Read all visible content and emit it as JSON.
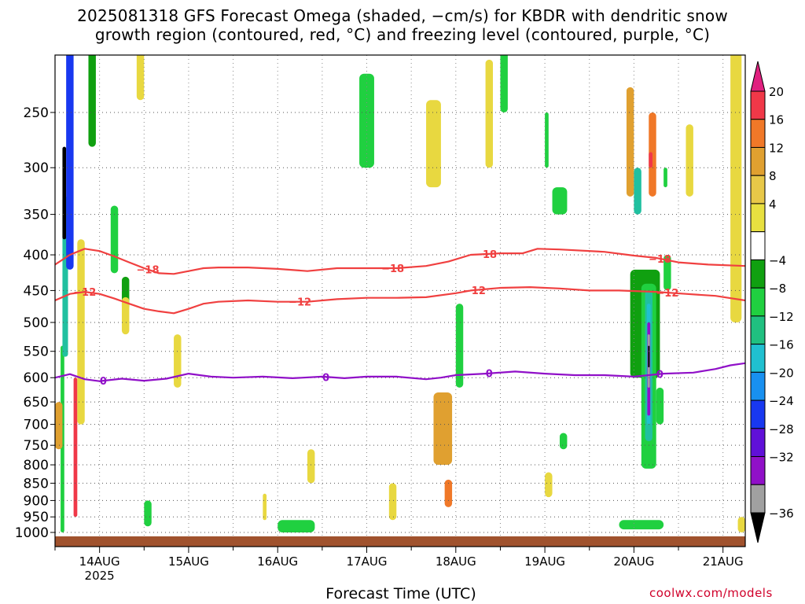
{
  "title": {
    "line1": "2025081318 GFS Forecast Omega (shaded, −cm/s) for KBDR with dendritic snow",
    "line2": "growth region (contoured, red, °C) and freezing level (contoured, purple, °C)"
  },
  "footer": {
    "xlabel": "Forecast Time (UTC)",
    "credit": "coolwx.com/models"
  },
  "chart_data": {
    "type": "heatmap",
    "title": "2025081318 GFS Forecast Omega (shaded, −cm/s) for KBDR with dendritic snow growth region (contoured, red, °C) and freezing level (contoured, purple, °C)",
    "xlabel": "Forecast Time (UTC)",
    "ylabel": "",
    "x_range_hours_from_14AUG00Z": [
      -12,
      174
    ],
    "x_ticks": [
      {
        "hour": 0,
        "label": "14AUG",
        "sub": "2025"
      },
      {
        "hour": 24,
        "label": "15AUG"
      },
      {
        "hour": 48,
        "label": "16AUG"
      },
      {
        "hour": 72,
        "label": "17AUG"
      },
      {
        "hour": 96,
        "label": "18AUG"
      },
      {
        "hour": 120,
        "label": "19AUG"
      },
      {
        "hour": 144,
        "label": "20AUG"
      },
      {
        "hour": 168,
        "label": "21AUG"
      }
    ],
    "y_axis": "pressure (hPa), log scale, inverted",
    "y_range": [
      1025,
      200
    ],
    "y_ticks": [
      250,
      300,
      350,
      400,
      450,
      500,
      550,
      600,
      650,
      700,
      750,
      800,
      850,
      900,
      950,
      1000
    ],
    "grid": true,
    "colorbar": {
      "labels": [
        "20",
        "16",
        "12",
        "8",
        "4",
        "−4",
        "−8",
        "−12",
        "−16",
        "−20",
        "−24",
        "−28",
        "−32",
        "−36"
      ],
      "colors_top_to_bottom": [
        "#e0207f",
        "#f03848",
        "#f07828",
        "#e0a030",
        "#e8c848",
        "#e8e040",
        "#ffffff",
        "#10a010",
        "#20d040",
        "#20c080",
        "#20c0d0",
        "#1890f0",
        "#1838f0",
        "#6010d8",
        "#9010c8",
        "#a0a0a0",
        "#000000"
      ]
    },
    "contours": [
      {
        "name": "-18",
        "color": "#f04040",
        "label_hours": [
          13,
          79,
          104,
          151
        ],
        "points": [
          [
            -12,
            413
          ],
          [
            -8,
            400
          ],
          [
            -4,
            392
          ],
          [
            0,
            395
          ],
          [
            4,
            402
          ],
          [
            8,
            410
          ],
          [
            12,
            418
          ],
          [
            16,
            425
          ],
          [
            20,
            426
          ],
          [
            24,
            422
          ],
          [
            28,
            418
          ],
          [
            32,
            417
          ],
          [
            40,
            417
          ],
          [
            48,
            419
          ],
          [
            56,
            422
          ],
          [
            64,
            418
          ],
          [
            72,
            418
          ],
          [
            80,
            418
          ],
          [
            88,
            415
          ],
          [
            94,
            409
          ],
          [
            100,
            400
          ],
          [
            108,
            398
          ],
          [
            114,
            398
          ],
          [
            118,
            392
          ],
          [
            124,
            393
          ],
          [
            136,
            396
          ],
          [
            144,
            401
          ],
          [
            150,
            404
          ],
          [
            156,
            410
          ],
          [
            164,
            413
          ],
          [
            174,
            415
          ]
        ]
      },
      {
        "name": "-12",
        "color": "#f04040",
        "label_hours": [
          -4,
          54,
          101,
          153
        ],
        "points": [
          [
            -12,
            465
          ],
          [
            -8,
            455
          ],
          [
            -4,
            452
          ],
          [
            0,
            455
          ],
          [
            4,
            462
          ],
          [
            8,
            470
          ],
          [
            12,
            478
          ],
          [
            16,
            482
          ],
          [
            20,
            485
          ],
          [
            24,
            478
          ],
          [
            28,
            470
          ],
          [
            32,
            467
          ],
          [
            40,
            465
          ],
          [
            48,
            467
          ],
          [
            56,
            467
          ],
          [
            64,
            463
          ],
          [
            72,
            461
          ],
          [
            80,
            461
          ],
          [
            88,
            460
          ],
          [
            96,
            454
          ],
          [
            100,
            450
          ],
          [
            108,
            446
          ],
          [
            116,
            445
          ],
          [
            124,
            447
          ],
          [
            132,
            450
          ],
          [
            140,
            450
          ],
          [
            150,
            452
          ],
          [
            158,
            455
          ],
          [
            166,
            458
          ],
          [
            174,
            465
          ]
        ]
      },
      {
        "name": "0",
        "color": "#9010c8",
        "label_hours": [
          1,
          61,
          105,
          151
        ],
        "points": [
          [
            -12,
            600
          ],
          [
            -8,
            593
          ],
          [
            -4,
            603
          ],
          [
            0,
            607
          ],
          [
            6,
            602
          ],
          [
            12,
            606
          ],
          [
            18,
            602
          ],
          [
            24,
            592
          ],
          [
            30,
            598
          ],
          [
            36,
            600
          ],
          [
            44,
            598
          ],
          [
            52,
            601
          ],
          [
            60,
            598
          ],
          [
            66,
            601
          ],
          [
            72,
            598
          ],
          [
            80,
            598
          ],
          [
            88,
            603
          ],
          [
            92,
            600
          ],
          [
            96,
            595
          ],
          [
            104,
            592
          ],
          [
            112,
            588
          ],
          [
            120,
            592
          ],
          [
            128,
            595
          ],
          [
            136,
            595
          ],
          [
            144,
            598
          ],
          [
            152,
            592
          ],
          [
            160,
            590
          ],
          [
            166,
            583
          ],
          [
            170,
            576
          ],
          [
            174,
            572
          ]
        ]
      }
    ],
    "omega_regions": [
      {
        "value": -8,
        "hours": [
          -10.5,
          -9.5
        ],
        "p": [
          540,
          1000
        ]
      },
      {
        "value": -12,
        "hours": [
          -10,
          -8.5
        ],
        "p": [
          330,
          560
        ]
      },
      {
        "value": -36,
        "hours": [
          -10,
          -9
        ],
        "p": [
          280,
          380
        ]
      },
      {
        "value": -24,
        "hours": [
          -9,
          -7
        ],
        "p": [
          200,
          420
        ]
      },
      {
        "value": 16,
        "hours": [
          -7,
          -6
        ],
        "p": [
          600,
          950
        ]
      },
      {
        "value": 8,
        "hours": [
          -12,
          -10
        ],
        "p": [
          650,
          760
        ]
      },
      {
        "value": 4,
        "hours": [
          -6,
          -4
        ],
        "p": [
          380,
          700
        ]
      },
      {
        "value": -8,
        "hours": [
          3,
          5
        ],
        "p": [
          340,
          425
        ]
      },
      {
        "value": -4,
        "hours": [
          6,
          8
        ],
        "p": [
          430,
          480
        ]
      },
      {
        "value": 4,
        "hours": [
          6,
          8
        ],
        "p": [
          460,
          520
        ]
      },
      {
        "value": 4,
        "hours": [
          20,
          22
        ],
        "p": [
          520,
          620
        ]
      },
      {
        "value": -4,
        "hours": [
          -3,
          -1
        ],
        "p": [
          200,
          280
        ]
      },
      {
        "value": 4,
        "hours": [
          10,
          12
        ],
        "p": [
          200,
          240
        ]
      },
      {
        "value": 4,
        "hours": [
          44,
          45
        ],
        "p": [
          880,
          960
        ]
      },
      {
        "value": -8,
        "hours": [
          12,
          14
        ],
        "p": [
          900,
          980
        ]
      },
      {
        "value": -8,
        "hours": [
          48,
          58
        ],
        "p": [
          960,
          1000
        ]
      },
      {
        "value": 4,
        "hours": [
          56,
          58
        ],
        "p": [
          760,
          850
        ]
      },
      {
        "value": 4,
        "hours": [
          78,
          80
        ],
        "p": [
          850,
          960
        ]
      },
      {
        "value": -8,
        "hours": [
          70,
          74
        ],
        "p": [
          220,
          300
        ]
      },
      {
        "value": 4,
        "hours": [
          88,
          92
        ],
        "p": [
          240,
          320
        ]
      },
      {
        "value": 8,
        "hours": [
          90,
          95
        ],
        "p": [
          630,
          800
        ]
      },
      {
        "value": 12,
        "hours": [
          93,
          95
        ],
        "p": [
          840,
          920
        ]
      },
      {
        "value": -8,
        "hours": [
          96,
          98
        ],
        "p": [
          470,
          620
        ]
      },
      {
        "value": 4,
        "hours": [
          104,
          106
        ],
        "p": [
          210,
          300
        ]
      },
      {
        "value": -8,
        "hours": [
          108,
          110
        ],
        "p": [
          200,
          250
        ]
      },
      {
        "value": -8,
        "hours": [
          120,
          121
        ],
        "p": [
          250,
          300
        ]
      },
      {
        "value": 4,
        "hours": [
          120,
          122
        ],
        "p": [
          820,
          890
        ]
      },
      {
        "value": -8,
        "hours": [
          122,
          126
        ],
        "p": [
          320,
          350
        ]
      },
      {
        "value": -8,
        "hours": [
          124,
          126
        ],
        "p": [
          720,
          760
        ]
      },
      {
        "value": 8,
        "hours": [
          142,
          144
        ],
        "p": [
          230,
          330
        ]
      },
      {
        "value": 12,
        "hours": [
          148,
          150
        ],
        "p": [
          250,
          330
        ]
      },
      {
        "value": 16,
        "hours": [
          148,
          149
        ],
        "p": [
          285,
          300
        ]
      },
      {
        "value": -12,
        "hours": [
          144,
          146
        ],
        "p": [
          300,
          350
        ]
      },
      {
        "value": -4,
        "hours": [
          143,
          151
        ],
        "p": [
          420,
          600
        ]
      },
      {
        "value": -8,
        "hours": [
          146,
          150
        ],
        "p": [
          440,
          810
        ]
      },
      {
        "value": -12,
        "hours": [
          147,
          149
        ],
        "p": [
          450,
          740
        ]
      },
      {
        "value": -16,
        "hours": [
          147.5,
          148.5
        ],
        "p": [
          470,
          700
        ]
      },
      {
        "value": -28,
        "hours": [
          147.6,
          148.4
        ],
        "p": [
          500,
          680
        ]
      },
      {
        "value": -32,
        "hours": [
          147.7,
          148.3
        ],
        "p": [
          520,
          620
        ]
      },
      {
        "value": -36,
        "hours": [
          147.8,
          148.2
        ],
        "p": [
          540,
          580
        ]
      },
      {
        "value": -8,
        "hours": [
          152,
          154
        ],
        "p": [
          400,
          450
        ]
      },
      {
        "value": -8,
        "hours": [
          150,
          152
        ],
        "p": [
          620,
          700
        ]
      },
      {
        "value": -8,
        "hours": [
          140,
          152
        ],
        "p": [
          960,
          990
        ]
      },
      {
        "value": 4,
        "hours": [
          158,
          160
        ],
        "p": [
          260,
          330
        ]
      },
      {
        "value": 4,
        "hours": [
          170,
          173
        ],
        "p": [
          200,
          500
        ]
      },
      {
        "value": -8,
        "hours": [
          152,
          153
        ],
        "p": [
          300,
          320
        ]
      },
      {
        "value": 4,
        "hours": [
          172,
          174
        ],
        "p": [
          950,
          1000
        ]
      }
    ]
  }
}
